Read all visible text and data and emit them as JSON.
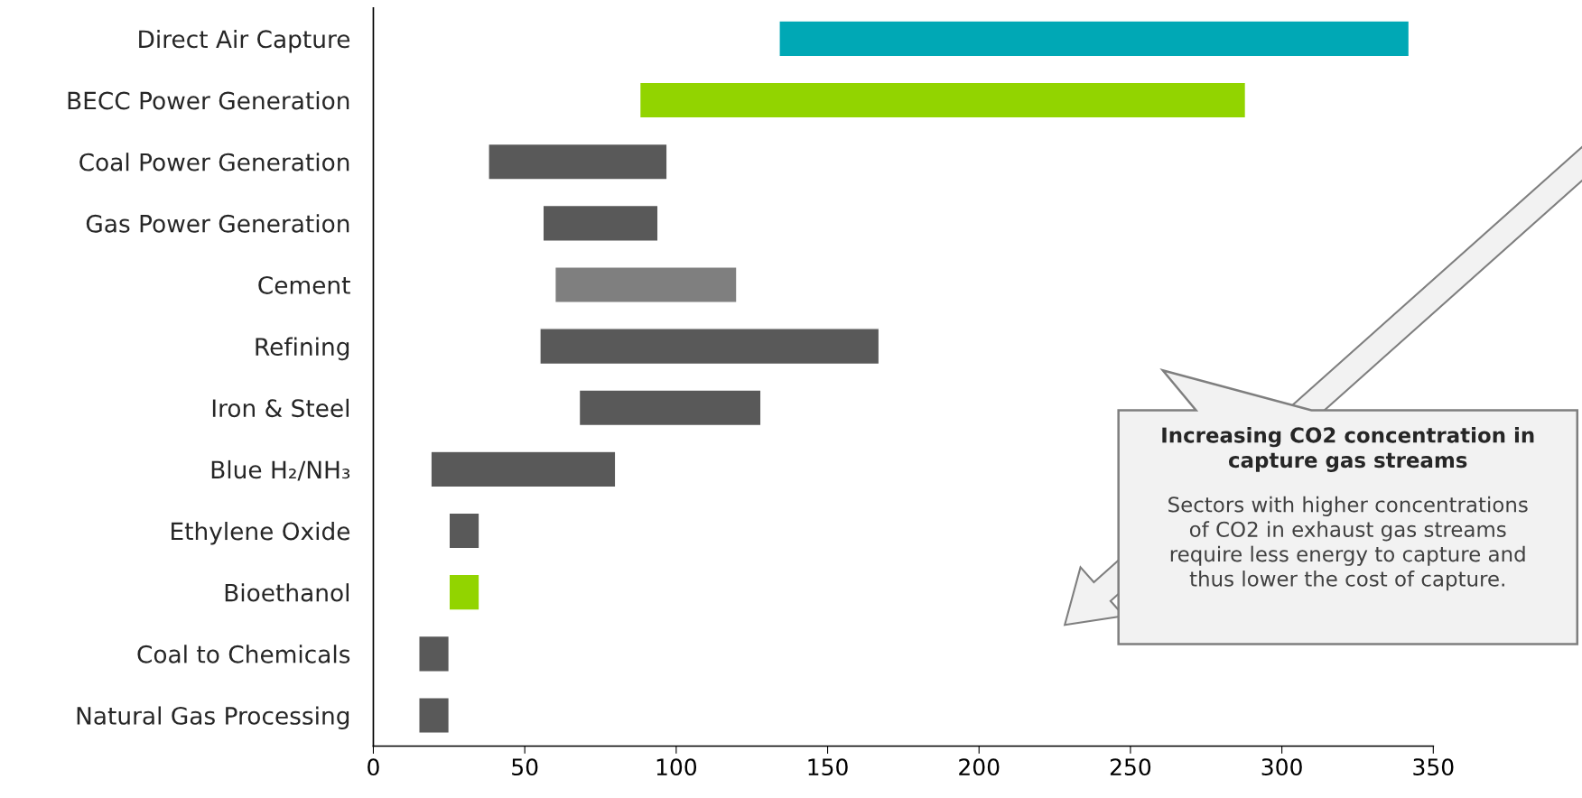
{
  "chart_data": {
    "type": "bar",
    "orientation": "horizontal",
    "categories": [
      "Direct Air Capture",
      "BECC Power Generation",
      "Coal Power Generation",
      "Gas Power Generation",
      "Cement",
      "Refining",
      "Iron & Steel",
      "Blue H₂/NH₃",
      "Ethylene Oxide",
      "Bioethanol",
      "Coal to Chemicals",
      "Natural Gas Processing"
    ],
    "base": [
      134,
      88,
      38,
      56,
      60,
      55,
      68,
      19,
      25,
      25,
      15,
      15
    ],
    "values": [
      208,
      200,
      59,
      38,
      60,
      112,
      60,
      61,
      10,
      10,
      10,
      10
    ],
    "colors": [
      "#00a8b5",
      "#92d400",
      "#595959",
      "#595959",
      "#7f7f7f",
      "#595959",
      "#595959",
      "#595959",
      "#595959",
      "#92d400",
      "#595959",
      "#595959"
    ],
    "xlim": [
      0,
      350
    ],
    "xticks": [
      0,
      50,
      100,
      150,
      200,
      250,
      300,
      350
    ],
    "grid": false,
    "annotations": [
      "Increasing CO2 concentration in\ncapture gas streams",
      "Sectors with higher concentrations\nof CO2 in exhaust gas streams\nrequire less energy to capture and\nthus lower the cost of capture."
    ]
  }
}
